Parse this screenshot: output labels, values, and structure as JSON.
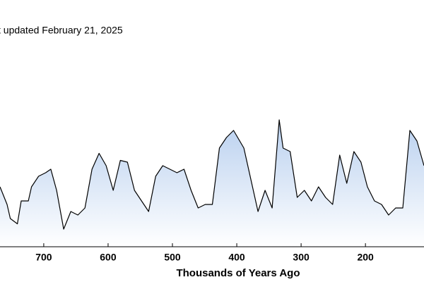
{
  "chart_data": {
    "type": "area",
    "annotation": "t updated February 21, 2025",
    "x_label": "Thousands of Years Ago",
    "x": [
      768,
      757,
      752,
      741,
      735,
      724,
      719,
      708,
      697,
      689,
      680,
      669,
      658,
      647,
      636,
      625,
      614,
      603,
      592,
      581,
      570,
      559,
      548,
      537,
      526,
      515,
      504,
      493,
      482,
      471,
      460,
      449,
      438,
      427,
      416,
      405,
      389,
      378,
      367,
      356,
      345,
      334,
      328,
      317,
      306,
      295,
      284,
      273,
      262,
      251,
      240,
      229,
      218,
      207,
      197,
      186,
      175,
      164,
      153,
      142,
      131,
      120,
      109
    ],
    "values": [
      228,
      208,
      192,
      186,
      212,
      212,
      228,
      240,
      244,
      248,
      224,
      180,
      200,
      196,
      204,
      248,
      266,
      252,
      224,
      258,
      256,
      224,
      212,
      200,
      240,
      252,
      248,
      244,
      248,
      224,
      204,
      208,
      208,
      272,
      284,
      292,
      272,
      236,
      200,
      224,
      204,
      304,
      272,
      268,
      216,
      224,
      212,
      228,
      216,
      208,
      264,
      232,
      268,
      256,
      228,
      212,
      208,
      196,
      204,
      204,
      292,
      280,
      252
    ],
    "color": "#000000",
    "fill_top": "#b9d0ef",
    "xlim": [
      768,
      109
    ],
    "ylim": [
      160,
      440
    ],
    "xticks": [
      700,
      600,
      500,
      400,
      300,
      200
    ]
  }
}
